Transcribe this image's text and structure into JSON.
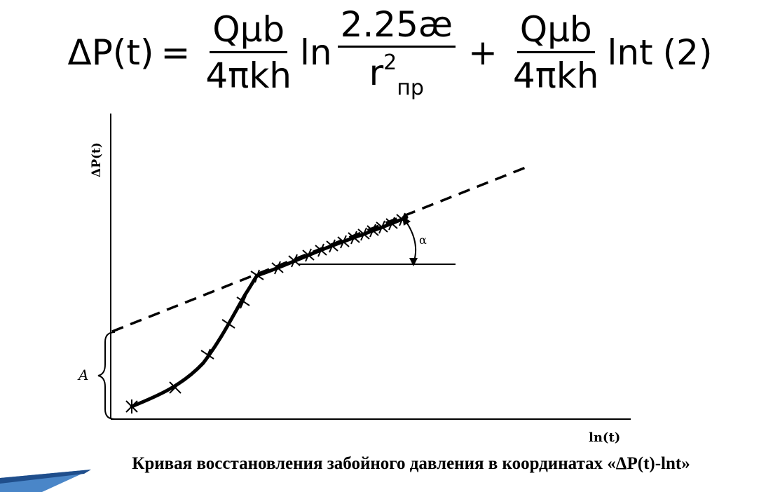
{
  "formula": {
    "lhs": "ΔP(t)",
    "eq": "=",
    "frac1_num": "Qμb",
    "frac1_den": "4πkh",
    "ln1": "ln",
    "frac2_num": "2.25æ",
    "frac2_den_base": "r",
    "frac2_den_sup": "2",
    "frac2_den_sub": "пр",
    "plus": "+",
    "frac3_num": "Qμb",
    "frac3_den": "4πkh",
    "ln2": "lnt",
    "eq_number": "(2)"
  },
  "diagram": {
    "y_axis_label": "ΔP(t)",
    "x_axis_label": "ln(t)",
    "intercept_label": "A",
    "angle_label": "α"
  },
  "caption": "Кривая восстановления забойного давления в координатах «ΔP(t)-lnt»",
  "colors": {
    "ink": "#000000",
    "accent": "#4a86c8",
    "accent_dark": "#1f4e8c"
  }
}
